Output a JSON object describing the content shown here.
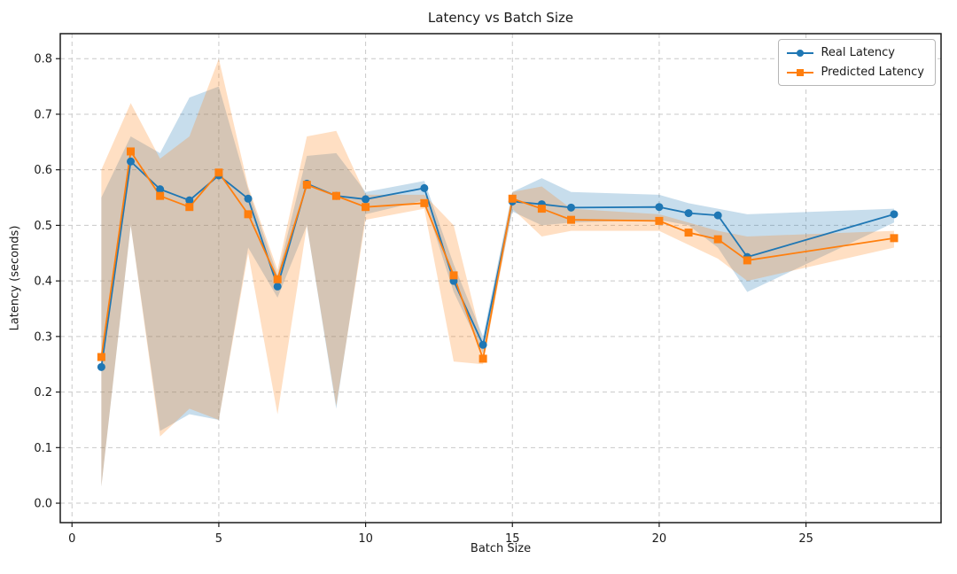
{
  "title": "Latency vs Batch Size",
  "xlabel": "Batch Size",
  "ylabel": "Latency (seconds)",
  "legend": {
    "real_label": "Real Latency",
    "predicted_label": "Predicted Latency"
  },
  "colors": {
    "real": "#1f77b4",
    "predicted": "#ff7f0e",
    "grid": "#c9c9c9",
    "spine": "#1a1a1a",
    "band_opacity": 0.25
  },
  "chart_data": {
    "type": "line",
    "title": "Latency vs Batch Size",
    "xlabel": "Batch Size",
    "ylabel": "Latency (seconds)",
    "grid": "dashed",
    "legend_position": "upper right",
    "xlim": [
      -0.4,
      29.6
    ],
    "ylim": [
      -0.035,
      0.845
    ],
    "xticks": [
      0,
      5,
      10,
      15,
      20,
      25
    ],
    "xtick_labels": [
      "0",
      "5",
      "10",
      "15",
      "20",
      "25"
    ],
    "yticks": [
      0.0,
      0.1,
      0.2,
      0.3,
      0.4,
      0.5,
      0.6,
      0.7,
      0.8
    ],
    "ytick_labels": [
      "0.0",
      "0.1",
      "0.2",
      "0.3",
      "0.4",
      "0.5",
      "0.6",
      "0.7",
      "0.8"
    ],
    "x": [
      1,
      2,
      3,
      4,
      5,
      6,
      7,
      8,
      9,
      10,
      12,
      13,
      14,
      15,
      16,
      17,
      20,
      21,
      22,
      23,
      28
    ],
    "series": [
      {
        "name": "Real Latency",
        "marker": "circle",
        "color": "#1f77b4",
        "values": [
          0.245,
          0.615,
          0.565,
          0.545,
          0.59,
          0.548,
          0.39,
          0.575,
          0.553,
          0.547,
          0.567,
          0.4,
          0.285,
          0.543,
          0.538,
          0.532,
          0.533,
          0.522,
          0.518,
          0.443,
          0.52
        ],
        "band_upper": [
          0.55,
          0.66,
          0.63,
          0.73,
          0.75,
          0.565,
          0.41,
          0.625,
          0.63,
          0.56,
          0.58,
          0.43,
          0.3,
          0.56,
          0.585,
          0.56,
          0.555,
          0.54,
          0.53,
          0.52,
          0.53
        ],
        "band_lower": [
          0.03,
          0.5,
          0.13,
          0.16,
          0.15,
          0.46,
          0.37,
          0.5,
          0.17,
          0.52,
          0.545,
          0.38,
          0.27,
          0.525,
          0.5,
          0.505,
          0.51,
          0.5,
          0.46,
          0.38,
          0.505
        ]
      },
      {
        "name": "Predicted Latency",
        "marker": "square",
        "color": "#ff7f0e",
        "values": [
          0.263,
          0.633,
          0.553,
          0.533,
          0.595,
          0.52,
          0.403,
          0.573,
          0.553,
          0.533,
          0.54,
          0.41,
          0.26,
          0.548,
          0.53,
          0.51,
          0.508,
          0.487,
          0.475,
          0.437,
          0.477
        ],
        "band_upper": [
          0.6,
          0.72,
          0.62,
          0.66,
          0.8,
          0.57,
          0.42,
          0.66,
          0.67,
          0.555,
          0.555,
          0.5,
          0.285,
          0.56,
          0.57,
          0.53,
          0.52,
          0.505,
          0.49,
          0.48,
          0.49
        ],
        "band_lower": [
          0.03,
          0.5,
          0.12,
          0.17,
          0.15,
          0.45,
          0.16,
          0.5,
          0.175,
          0.51,
          0.53,
          0.255,
          0.25,
          0.53,
          0.48,
          0.49,
          0.49,
          0.465,
          0.44,
          0.4,
          0.46
        ]
      }
    ]
  }
}
